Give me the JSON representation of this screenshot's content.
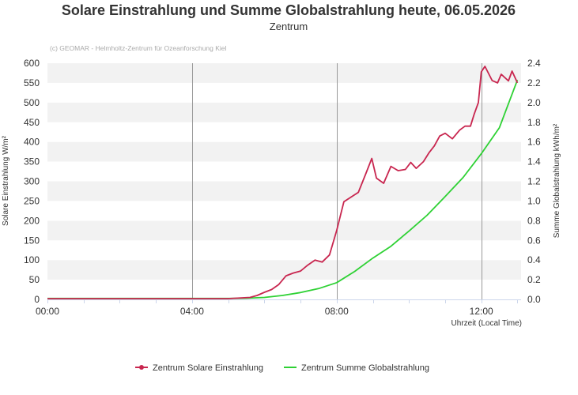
{
  "chart_data": {
    "type": "line",
    "title": "Solare Einstrahlung und Summe Globalstrahlung heute, 06.05.2026",
    "subtitle": "Zentrum",
    "credit": "(c) GEOMAR - Helmholtz-Zentrum für Ozeanforschung Kiel",
    "xlabel": "Uhrzeit (Local Time)",
    "ylabel_left": "Solare Einstrahlung W/m²",
    "ylabel_right": "Summe Globalstrahlung kWh/m²",
    "x_unit": "hours",
    "xlim": [
      0,
      13.1
    ],
    "ylim_left": [
      0,
      600
    ],
    "ylim_right": [
      0,
      2.4
    ],
    "x_ticks": [
      {
        "value": 0,
        "label": "00:00"
      },
      {
        "value": 4,
        "label": "04:00"
      },
      {
        "value": 8,
        "label": "08:00"
      },
      {
        "value": 12,
        "label": "12:00"
      }
    ],
    "y_left_ticks": [
      "0",
      "50",
      "100",
      "150",
      "200",
      "250",
      "300",
      "350",
      "400",
      "450",
      "500",
      "550",
      "600"
    ],
    "y_right_ticks": [
      "0.0",
      "0.2",
      "0.4",
      "0.6",
      "0.8",
      "1.0",
      "1.2",
      "1.4",
      "1.6",
      "1.8",
      "2.0",
      "2.2",
      "2.4"
    ],
    "grid": "horizontal bands",
    "legend_position": "bottom",
    "series": [
      {
        "name": "Zentrum Solare Einstrahlung",
        "axis": "left",
        "color": "#c8264f",
        "x": [
          0,
          1,
          2,
          3,
          4,
          5,
          5.2,
          5.4,
          5.6,
          5.8,
          6.0,
          6.2,
          6.4,
          6.6,
          6.8,
          7.0,
          7.2,
          7.4,
          7.6,
          7.8,
          8.0,
          8.2,
          8.4,
          8.6,
          8.8,
          8.97,
          9.1,
          9.3,
          9.5,
          9.7,
          9.9,
          10.05,
          10.2,
          10.4,
          10.55,
          10.7,
          10.85,
          11.0,
          11.2,
          11.4,
          11.55,
          11.7,
          11.8,
          11.92,
          12.0,
          12.1,
          12.3,
          12.45,
          12.55,
          12.75,
          12.85,
          13.0
        ],
        "y": [
          2,
          2,
          2,
          2,
          2,
          2,
          3,
          4,
          5,
          10,
          18,
          25,
          38,
          60,
          67,
          72,
          87,
          100,
          95,
          113,
          175,
          248,
          260,
          272,
          318,
          358,
          308,
          295,
          338,
          327,
          330,
          348,
          333,
          350,
          372,
          390,
          415,
          422,
          408,
          430,
          440,
          440,
          470,
          500,
          578,
          592,
          556,
          550,
          572,
          555,
          580,
          550
        ]
      },
      {
        "name": "Zentrum Summe Globalstrahlung",
        "axis": "right",
        "color": "#2ed134",
        "x": [
          0,
          1,
          2,
          3,
          4,
          5,
          5.5,
          6.0,
          6.5,
          7.0,
          7.5,
          8.0,
          8.5,
          9.0,
          9.5,
          10.0,
          10.5,
          11.0,
          11.5,
          12.0,
          12.5,
          13.0
        ],
        "y": [
          0.01,
          0.01,
          0.01,
          0.01,
          0.01,
          0.01,
          0.012,
          0.02,
          0.04,
          0.07,
          0.11,
          0.17,
          0.285,
          0.42,
          0.54,
          0.695,
          0.855,
          1.045,
          1.24,
          1.48,
          1.745,
          2.23
        ]
      }
    ]
  }
}
